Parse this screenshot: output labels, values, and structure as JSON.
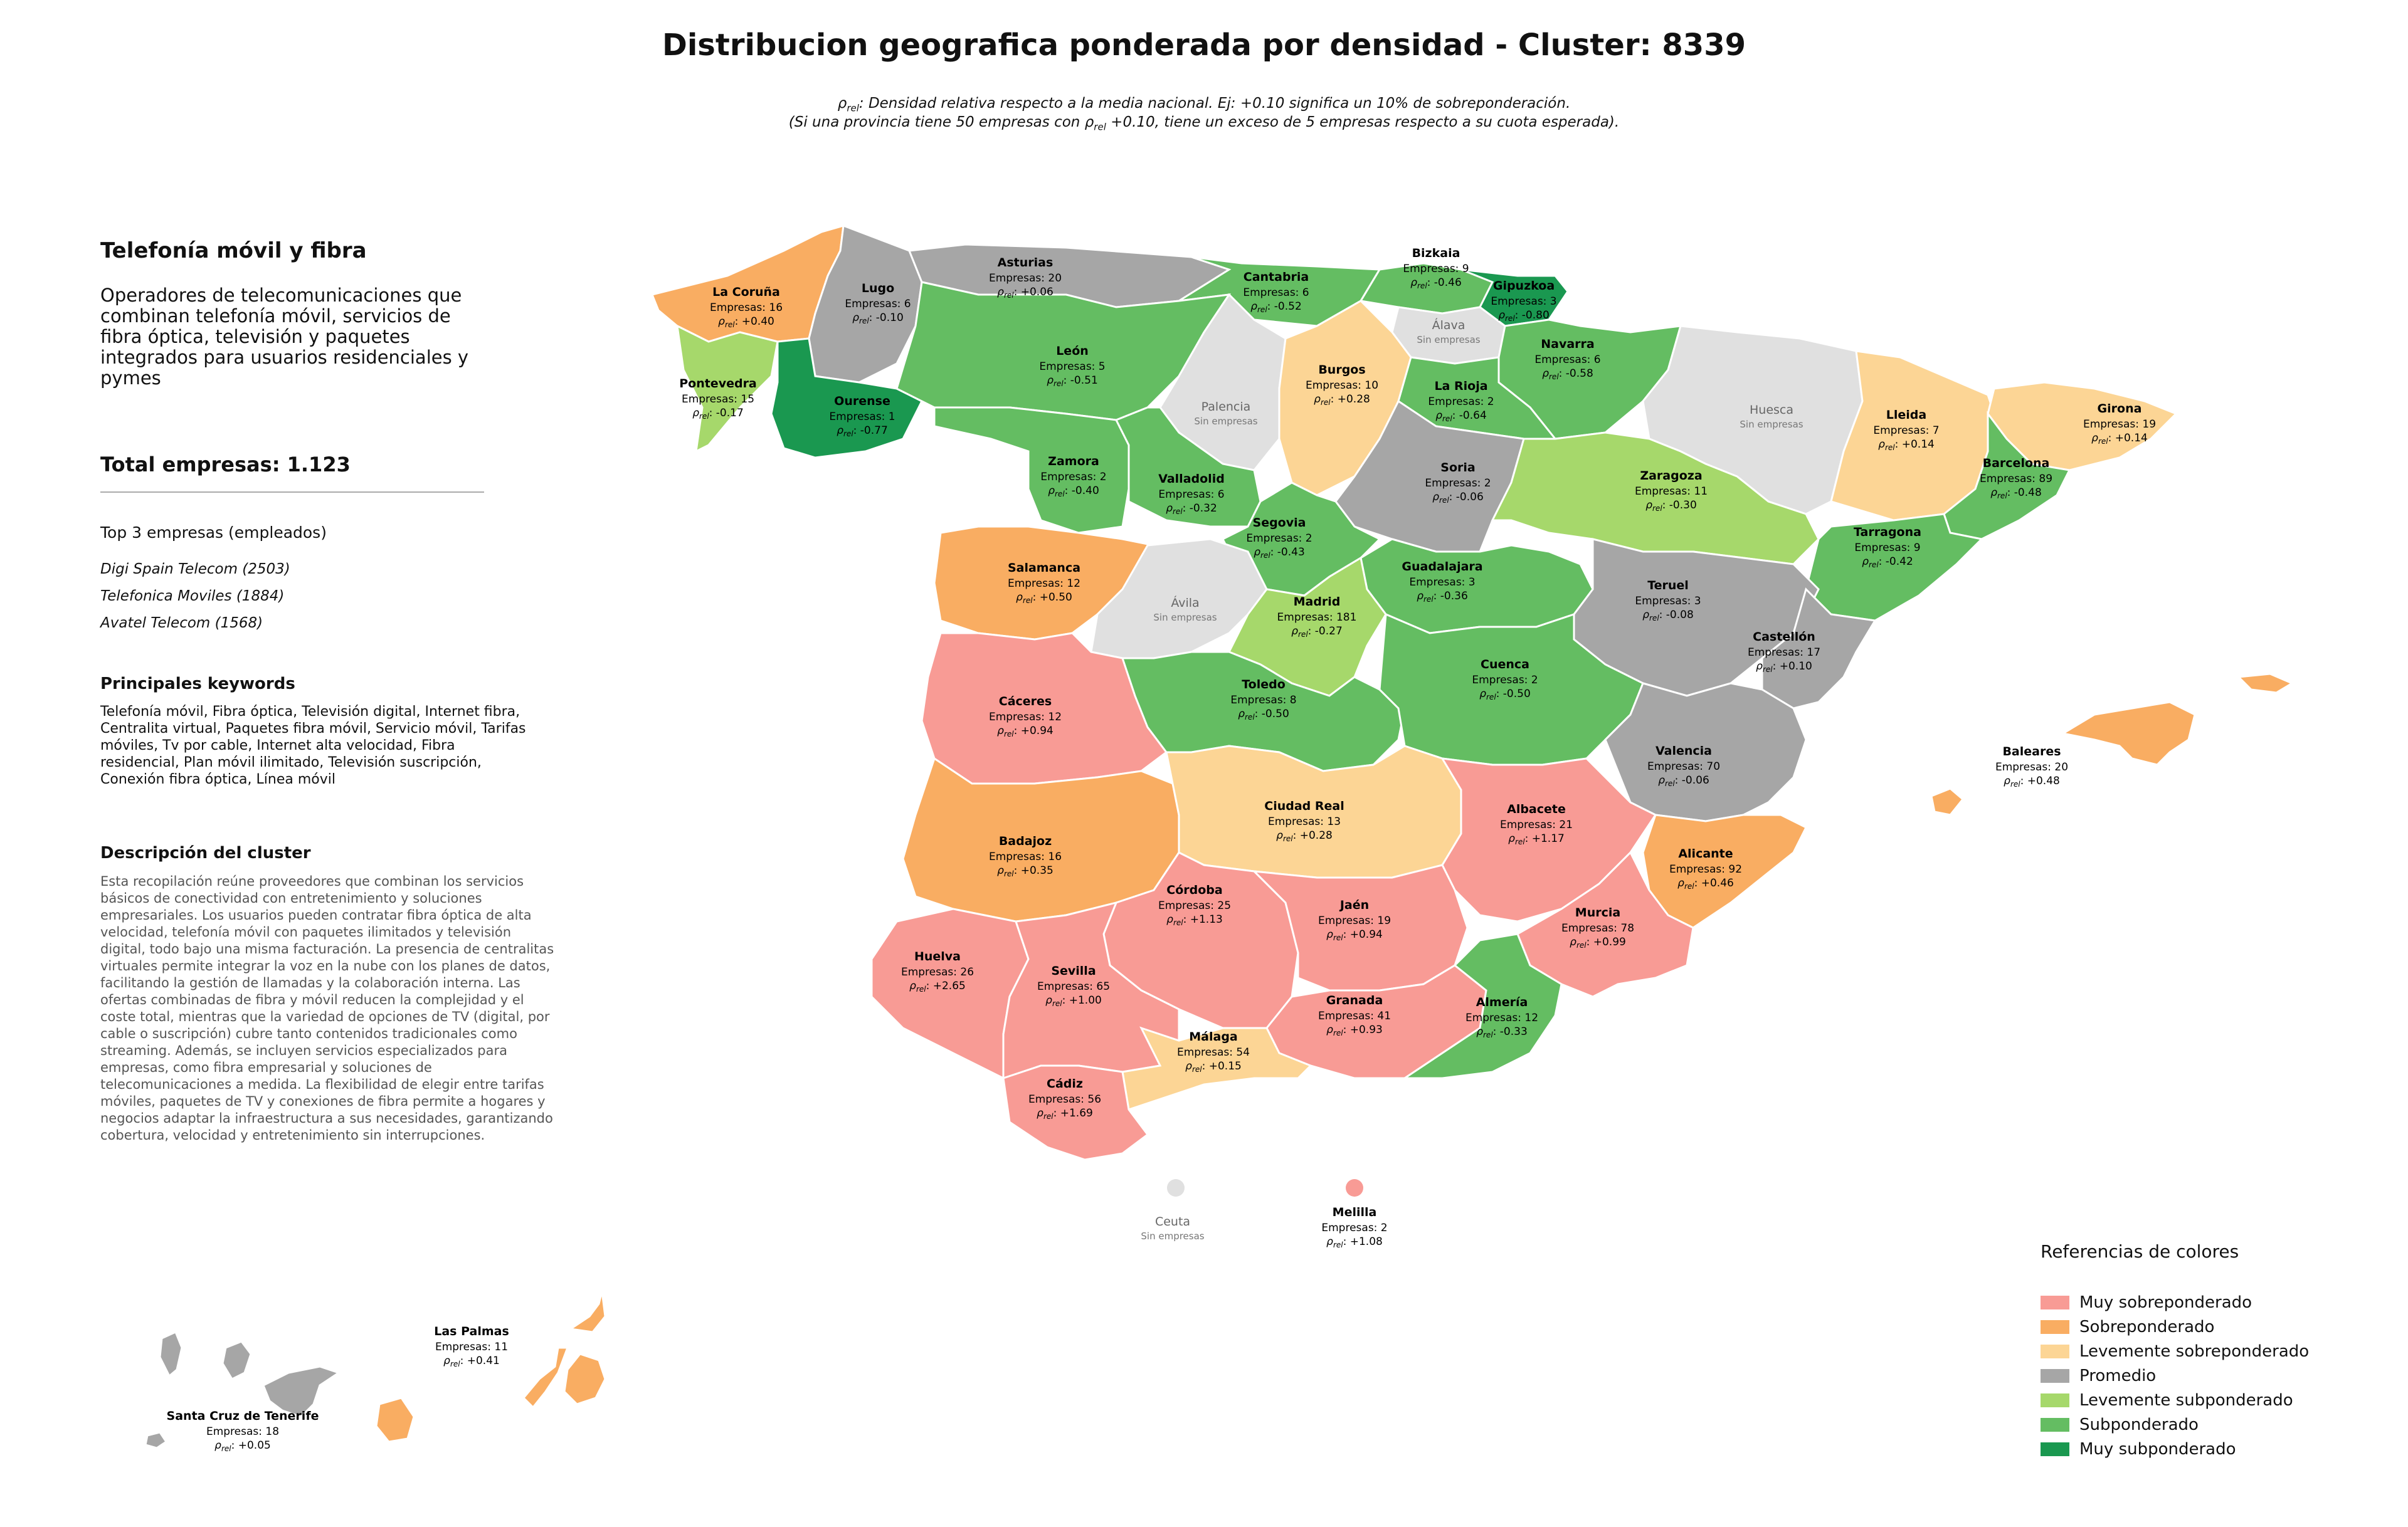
{
  "title": "Distribucion geografica ponderada por densidad - Cluster: 8339",
  "subtitle": {
    "rho_symbol": "ρ",
    "rho_subscript": "rel",
    "line1": ": Densidad relativa respecto a la media nacional. Ej: +0.10 significa un 10% de sobreponderación.",
    "line2_pre": "(Si una provincia tiene 50 empresas con ",
    "line2_post": " +0.10, tiene un exceso de 5 empresas respecto a su cuota esperada)."
  },
  "panel": {
    "title": "Telefonía móvil y fibra",
    "description": "Operadores de telecomunicaciones que combinan telefonía móvil, servicios de fibra óptica, televisión y paquetes integrados para usuarios residenciales y pymes",
    "total_label": "Total empresas: 1.123",
    "top3_heading": "Top 3 empresas (empleados)",
    "top3": [
      "Digi Spain Telecom (2503)",
      "Telefonica Moviles (1884)",
      "Avatel Telecom (1568)"
    ],
    "keywords_heading": "Principales keywords",
    "keywords_text": "Telefonía móvil, Fibra óptica, Televisión digital, Internet fibra, Centralita virtual, Paquetes fibra móvil, Servicio móvil, Tarifas móviles, Tv por cable, Internet alta velocidad, Fibra residencial, Plan móvil ilimitado, Televisión suscripción, Conexión fibra óptica, Línea móvil",
    "description_heading": "Descripción del cluster",
    "description_text": "Esta recopilación reúne proveedores que combinan los servicios básicos de conectividad con entretenimiento y soluciones empresariales. Los usuarios pueden contratar fibra óptica de alta velocidad, telefonía móvil con paquetes ilimitados y televisión digital, todo bajo una misma facturación. La presencia de centralitas virtuales permite integrar la voz en la nube con los planes de datos, facilitando la gestión de llamadas y la colaboración interna. Las ofertas combinadas de fibra y móvil reducen la complejidad y el coste total, mientras que la variedad de opciones de TV (digital, por cable o suscripción) cubre tanto contenidos tradicionales como streaming. Además, se incluyen servicios especializados para empresas, como fibra empresarial y soluciones de telecomunicaciones a medida. La flexibilidad de elegir entre tarifas móviles, paquetes de TV y conexiones de fibra permite a hogares y negocios adaptar la infraestructura a sus necesidades, garantizando cobertura, velocidad y entretenimiento sin interrupciones."
  },
  "map_labels": {
    "empresas_prefix": "Empresas: ",
    "no_companies": "Sin empresas"
  },
  "categories": {
    "muy_sobre": {
      "label": "Muy sobreponderado",
      "color": "#f89b95"
    },
    "sobre": {
      "label": "Sobreponderado",
      "color": "#f9ad62"
    },
    "lev_sobre": {
      "label": "Levemente sobreponderado",
      "color": "#fcd595"
    },
    "promedio": {
      "label": "Promedio",
      "color": "#a6a6a6"
    },
    "lev_sub": {
      "label": "Levemente subponderado",
      "color": "#a6d86b"
    },
    "sub": {
      "label": "Subponderado",
      "color": "#64bd62"
    },
    "muy_sub": {
      "label": "Muy subponderado",
      "color": "#1a9850"
    },
    "none": {
      "label": "",
      "color": "#e0e0e0"
    }
  },
  "legend": {
    "title": "Referencias de colores",
    "order": [
      "muy_sobre",
      "sobre",
      "lev_sobre",
      "promedio",
      "lev_sub",
      "sub",
      "muy_sub"
    ]
  },
  "provinces": [
    {
      "name": "La Coruña",
      "empresas": 16,
      "rho": "+0.40",
      "cat": "sobre"
    },
    {
      "name": "Lugo",
      "empresas": 6,
      "rho": "-0.10",
      "cat": "promedio"
    },
    {
      "name": "Asturias",
      "empresas": 20,
      "rho": "+0.06",
      "cat": "promedio"
    },
    {
      "name": "Cantabria",
      "empresas": 6,
      "rho": "-0.52",
      "cat": "sub"
    },
    {
      "name": "Bizkaia",
      "empresas": 9,
      "rho": "-0.46",
      "cat": "sub"
    },
    {
      "name": "Gipuzkoa",
      "empresas": 3,
      "rho": "-0.80",
      "cat": "muy_sub"
    },
    {
      "name": "Álava",
      "empresas": null,
      "rho": null,
      "cat": "none"
    },
    {
      "name": "Navarra",
      "empresas": 6,
      "rho": "-0.58",
      "cat": "sub"
    },
    {
      "name": "Pontevedra",
      "empresas": 15,
      "rho": "-0.17",
      "cat": "lev_sub"
    },
    {
      "name": "Ourense",
      "empresas": 1,
      "rho": "-0.77",
      "cat": "muy_sub"
    },
    {
      "name": "León",
      "empresas": 5,
      "rho": "-0.51",
      "cat": "sub"
    },
    {
      "name": "Palencia",
      "empresas": null,
      "rho": null,
      "cat": "none"
    },
    {
      "name": "Burgos",
      "empresas": 10,
      "rho": "+0.28",
      "cat": "lev_sobre"
    },
    {
      "name": "La Rioja",
      "empresas": 2,
      "rho": "-0.64",
      "cat": "sub"
    },
    {
      "name": "Huesca",
      "empresas": null,
      "rho": null,
      "cat": "none"
    },
    {
      "name": "Lleida",
      "empresas": 7,
      "rho": "+0.14",
      "cat": "lev_sobre"
    },
    {
      "name": "Girona",
      "empresas": 19,
      "rho": "+0.14",
      "cat": "lev_sobre"
    },
    {
      "name": "Barcelona",
      "empresas": 89,
      "rho": "-0.48",
      "cat": "sub"
    },
    {
      "name": "Zamora",
      "empresas": 2,
      "rho": "-0.40",
      "cat": "sub"
    },
    {
      "name": "Valladolid",
      "empresas": 6,
      "rho": "-0.32",
      "cat": "sub"
    },
    {
      "name": "Soria",
      "empresas": 2,
      "rho": "-0.06",
      "cat": "promedio"
    },
    {
      "name": "Zaragoza",
      "empresas": 11,
      "rho": "-0.30",
      "cat": "lev_sub"
    },
    {
      "name": "Tarragona",
      "empresas": 9,
      "rho": "-0.42",
      "cat": "sub"
    },
    {
      "name": "Segovia",
      "empresas": 2,
      "rho": "-0.43",
      "cat": "sub"
    },
    {
      "name": "Salamanca",
      "empresas": 12,
      "rho": "+0.50",
      "cat": "sobre"
    },
    {
      "name": "Ávila",
      "empresas": null,
      "rho": null,
      "cat": "none"
    },
    {
      "name": "Guadalajara",
      "empresas": 3,
      "rho": "-0.36",
      "cat": "sub"
    },
    {
      "name": "Madrid",
      "empresas": 181,
      "rho": "-0.27",
      "cat": "lev_sub"
    },
    {
      "name": "Teruel",
      "empresas": 3,
      "rho": "-0.08",
      "cat": "promedio"
    },
    {
      "name": "Castellón",
      "empresas": 17,
      "rho": "+0.10",
      "cat": "promedio"
    },
    {
      "name": "Cáceres",
      "empresas": 12,
      "rho": "+0.94",
      "cat": "muy_sobre"
    },
    {
      "name": "Toledo",
      "empresas": 8,
      "rho": "-0.50",
      "cat": "sub"
    },
    {
      "name": "Cuenca",
      "empresas": 2,
      "rho": "-0.50",
      "cat": "sub"
    },
    {
      "name": "Valencia",
      "empresas": 70,
      "rho": "-0.06",
      "cat": "promedio"
    },
    {
      "name": "Baleares",
      "empresas": 20,
      "rho": "+0.48",
      "cat": "sobre"
    },
    {
      "name": "Badajoz",
      "empresas": 16,
      "rho": "+0.35",
      "cat": "sobre"
    },
    {
      "name": "Ciudad Real",
      "empresas": 13,
      "rho": "+0.28",
      "cat": "lev_sobre"
    },
    {
      "name": "Albacete",
      "empresas": 21,
      "rho": "+1.17",
      "cat": "muy_sobre"
    },
    {
      "name": "Alicante",
      "empresas": 92,
      "rho": "+0.46",
      "cat": "sobre"
    },
    {
      "name": "Córdoba",
      "empresas": 25,
      "rho": "+1.13",
      "cat": "muy_sobre"
    },
    {
      "name": "Jaén",
      "empresas": 19,
      "rho": "+0.94",
      "cat": "muy_sobre"
    },
    {
      "name": "Murcia",
      "empresas": 78,
      "rho": "+0.99",
      "cat": "muy_sobre"
    },
    {
      "name": "Huelva",
      "empresas": 26,
      "rho": "+2.65",
      "cat": "muy_sobre"
    },
    {
      "name": "Sevilla",
      "empresas": 65,
      "rho": "+1.00",
      "cat": "muy_sobre"
    },
    {
      "name": "Granada",
      "empresas": 41,
      "rho": "+0.93",
      "cat": "muy_sobre"
    },
    {
      "name": "Almería",
      "empresas": 12,
      "rho": "-0.33",
      "cat": "sub"
    },
    {
      "name": "Málaga",
      "empresas": 54,
      "rho": "+0.15",
      "cat": "lev_sobre"
    },
    {
      "name": "Cádiz",
      "empresas": 56,
      "rho": "+1.69",
      "cat": "muy_sobre"
    },
    {
      "name": "Ceuta",
      "empresas": null,
      "rho": null,
      "cat": "none"
    },
    {
      "name": "Melilla",
      "empresas": 2,
      "rho": "+1.08",
      "cat": "muy_sobre"
    },
    {
      "name": "Las Palmas",
      "empresas": 11,
      "rho": "+0.41",
      "cat": "sobre"
    },
    {
      "name": "Santa Cruz de Tenerife",
      "empresas": 18,
      "rho": "+0.05",
      "cat": "promedio"
    }
  ]
}
